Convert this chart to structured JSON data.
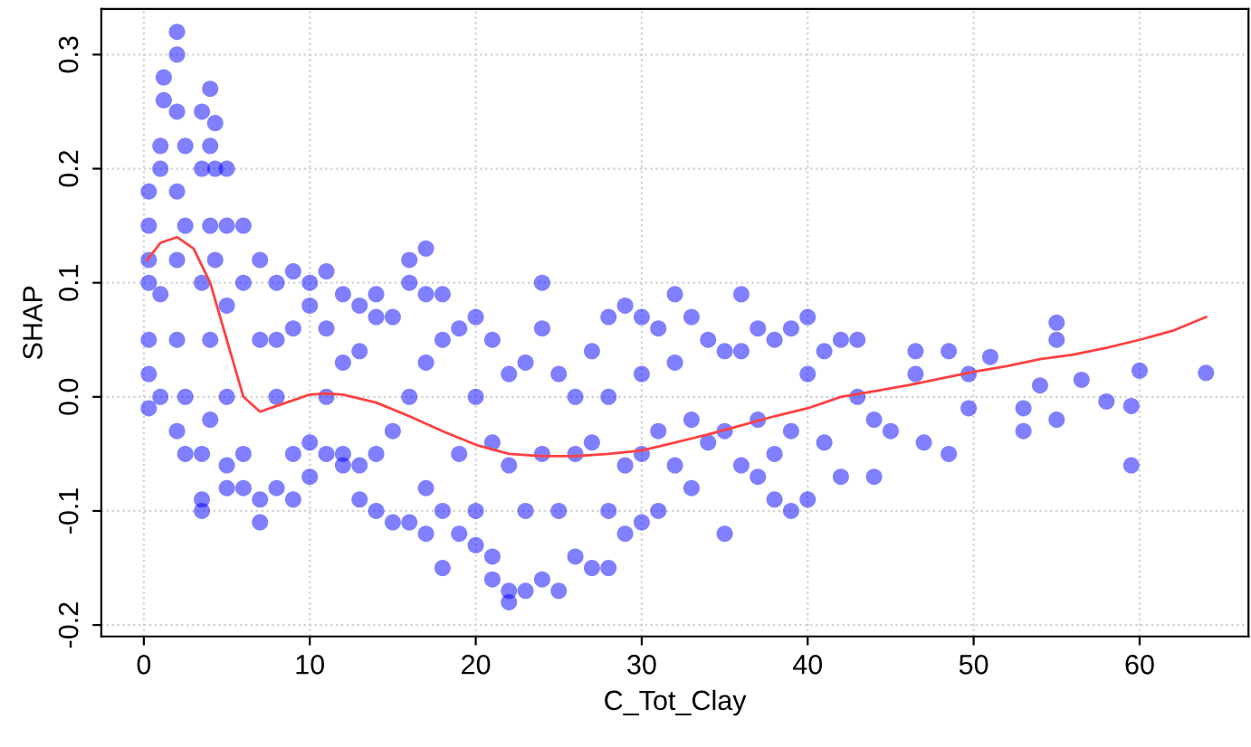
{
  "chart_data": {
    "type": "scatter",
    "xlabel": "C_Tot_Clay",
    "ylabel": "SHAP",
    "xlim": [
      -2.56,
      66.56
    ],
    "ylim": [
      -0.21,
      0.34
    ],
    "xticks": [
      0,
      10,
      20,
      30,
      40,
      50,
      60
    ],
    "yticks": [
      -0.2,
      -0.1,
      {
        "value": 0,
        "label": "0.0"
      },
      0.1,
      0.2,
      0.3
    ],
    "grid": true,
    "series": [
      {
        "marker": "circle",
        "color": "#0000ff",
        "x": [
          0.3,
          0.3,
          0.3,
          0.3,
          0.3,
          0.3,
          0.3,
          1,
          1,
          1,
          1,
          2,
          2,
          2,
          2,
          2,
          2,
          2,
          1.2,
          1.2,
          2.5,
          2.5,
          2.5,
          2.5,
          3.5,
          3.5,
          3.5,
          3.5,
          3.5,
          3.5,
          4,
          4,
          4,
          4,
          4,
          4.3,
          4.3,
          4.3,
          5,
          5,
          5,
          5,
          5,
          5,
          6,
          6,
          6,
          6,
          7,
          7,
          7,
          7,
          8,
          8,
          8,
          8,
          9,
          9,
          9,
          9,
          10,
          10,
          10,
          10,
          11,
          11,
          11,
          11,
          12,
          12,
          12,
          12,
          13,
          13,
          13,
          13,
          14,
          14,
          14,
          14,
          15,
          15,
          15,
          16,
          16,
          16,
          16,
          17,
          17,
          17,
          17,
          17,
          18,
          18,
          18,
          18,
          19,
          19,
          19,
          20,
          20,
          20,
          20,
          21,
          21,
          21,
          21,
          22,
          22,
          22,
          22,
          23,
          23,
          23,
          24,
          24,
          24,
          24,
          25,
          25,
          25,
          26,
          26,
          26,
          27,
          27,
          27,
          28,
          28,
          28,
          28,
          29,
          29,
          29,
          30,
          30,
          30,
          30,
          31,
          31,
          31,
          32,
          32,
          32,
          33,
          33,
          33,
          34,
          34,
          35,
          35,
          35,
          36,
          36,
          36,
          37,
          37,
          37,
          38,
          38,
          38,
          39,
          39,
          39,
          40,
          40,
          40,
          41,
          41,
          42,
          42,
          43,
          43,
          44,
          44,
          45,
          46.5,
          46.5,
          47,
          48.5,
          48.5,
          49.7,
          49.7,
          51,
          53,
          53,
          54,
          55,
          55,
          55,
          56.5,
          58,
          59.5,
          59.5,
          60,
          64
        ],
        "values": [
          0.15,
          0.12,
          0.18,
          0.1,
          0.05,
          -0.01,
          0.02,
          0.2,
          0.22,
          0.09,
          0.0,
          0.32,
          0.3,
          0.25,
          0.18,
          0.12,
          0.05,
          -0.03,
          0.28,
          0.26,
          0.22,
          0.15,
          0.0,
          -0.05,
          0.25,
          0.2,
          0.1,
          -0.05,
          -0.09,
          -0.1,
          0.27,
          0.22,
          0.15,
          0.05,
          -0.02,
          0.24,
          0.2,
          0.12,
          0.2,
          0.15,
          0.08,
          0.0,
          -0.06,
          -0.08,
          0.15,
          0.1,
          -0.05,
          -0.08,
          0.12,
          0.05,
          -0.09,
          -0.11,
          0.1,
          0.05,
          0.0,
          -0.08,
          0.11,
          0.06,
          -0.05,
          -0.09,
          0.1,
          0.08,
          -0.04,
          -0.07,
          0.11,
          0.06,
          0.0,
          -0.05,
          0.09,
          0.03,
          -0.05,
          -0.06,
          0.08,
          0.04,
          -0.06,
          -0.09,
          0.09,
          0.07,
          -0.05,
          -0.1,
          0.07,
          -0.03,
          -0.11,
          0.12,
          0.1,
          0.0,
          -0.11,
          0.13,
          0.09,
          0.03,
          -0.08,
          -0.12,
          0.09,
          0.05,
          -0.1,
          -0.15,
          0.06,
          -0.05,
          -0.12,
          0.07,
          0.0,
          -0.1,
          -0.13,
          0.05,
          -0.04,
          -0.14,
          -0.16,
          0.02,
          -0.06,
          -0.17,
          -0.18,
          0.03,
          -0.1,
          -0.17,
          0.1,
          0.06,
          -0.05,
          -0.16,
          0.02,
          -0.1,
          -0.17,
          0.0,
          -0.05,
          -0.14,
          0.04,
          -0.04,
          -0.15,
          0.07,
          0.0,
          -0.1,
          -0.15,
          0.08,
          -0.06,
          -0.12,
          0.07,
          0.02,
          -0.05,
          -0.11,
          0.06,
          -0.03,
          -0.1,
          0.09,
          0.03,
          -0.06,
          0.07,
          -0.02,
          -0.08,
          0.05,
          -0.04,
          0.04,
          -0.03,
          -0.12,
          0.09,
          0.04,
          -0.06,
          0.06,
          -0.02,
          -0.07,
          0.05,
          -0.05,
          -0.09,
          0.06,
          -0.03,
          -0.1,
          0.07,
          0.02,
          -0.09,
          0.04,
          -0.04,
          0.05,
          -0.07,
          0.05,
          0.0,
          -0.02,
          -0.07,
          -0.03,
          0.02,
          0.04,
          -0.04,
          0.04,
          -0.05,
          -0.01,
          0.02,
          0.035,
          -0.01,
          -0.03,
          0.01,
          0.065,
          0.05,
          -0.02,
          0.015,
          -0.004,
          -0.06,
          -0.008,
          0.023,
          0.021
        ]
      },
      {
        "type": "line",
        "color": "#ff4040",
        "x": [
          0.2,
          1,
          2,
          3,
          4,
          5,
          6,
          7,
          8,
          9,
          10,
          11,
          12,
          14,
          16,
          18,
          20,
          22,
          24,
          26,
          28,
          30,
          32,
          34,
          36,
          38,
          40,
          42,
          44,
          46,
          48,
          50,
          52,
          54,
          56,
          58,
          60,
          62,
          64
        ],
        "values": [
          0.12,
          0.135,
          0.14,
          0.13,
          0.1,
          0.05,
          0.0,
          -0.013,
          -0.008,
          -0.003,
          0.002,
          0.003,
          0.002,
          -0.005,
          -0.017,
          -0.03,
          -0.042,
          -0.05,
          -0.052,
          -0.052,
          -0.05,
          -0.047,
          -0.04,
          -0.033,
          -0.025,
          -0.017,
          -0.01,
          0.0,
          0.005,
          0.01,
          0.016,
          0.022,
          0.027,
          0.033,
          0.037,
          0.043,
          0.05,
          0.058,
          0.07
        ]
      }
    ]
  }
}
